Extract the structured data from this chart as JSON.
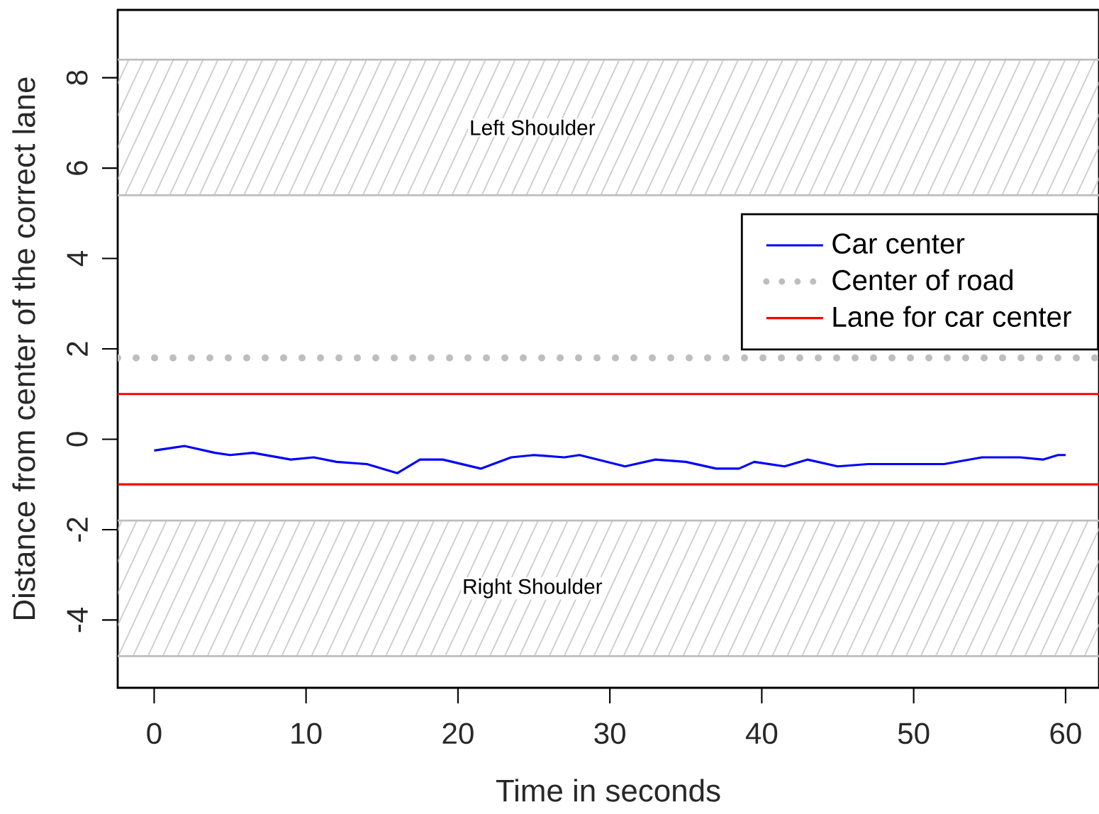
{
  "chart_data": {
    "type": "line",
    "xlabel": "Time in seconds",
    "ylabel": "Distance from center of the correct lane",
    "x": [
      0,
      2,
      4,
      5,
      6.5,
      9,
      10.5,
      12,
      14,
      16,
      17.5,
      19,
      21.5,
      23.5,
      25,
      27,
      28,
      31,
      33,
      35,
      37,
      38.5,
      39.5,
      41.5,
      43,
      45,
      47,
      52,
      54.5,
      57,
      58.5,
      59.5,
      60
    ],
    "series": [
      {
        "name": "Car center",
        "color": "#0000ff",
        "values": [
          -0.25,
          -0.15,
          -0.3,
          -0.35,
          -0.3,
          -0.45,
          -0.4,
          -0.5,
          -0.55,
          -0.75,
          -0.45,
          -0.45,
          -0.65,
          -0.4,
          -0.35,
          -0.4,
          -0.35,
          -0.6,
          -0.45,
          -0.5,
          -0.65,
          -0.65,
          -0.5,
          -0.6,
          -0.45,
          -0.6,
          -0.55,
          -0.55,
          -0.4,
          -0.4,
          -0.45,
          -0.35,
          -0.35
        ]
      }
    ],
    "xlim": [
      -2.4,
      62.2
    ],
    "ylim": [
      -5.5,
      9.5
    ],
    "xticks": [
      0,
      10,
      20,
      30,
      40,
      50,
      60
    ],
    "yticks": [
      -4,
      -2,
      0,
      2,
      4,
      6,
      8
    ],
    "ref_lines": [
      {
        "axis": "y",
        "value": 1.8,
        "label": "Center of road",
        "color": "#bebebe",
        "line_style": "dotted"
      },
      {
        "axis": "y",
        "value": 1,
        "label": "Lane for car center",
        "color": "#ff0000",
        "line_style": "solid"
      },
      {
        "axis": "y",
        "value": -1,
        "color": "#ff0000",
        "line_style": "solid"
      }
    ],
    "bands": [
      {
        "axis": "y",
        "from": 5.4,
        "to": 8.4,
        "label": "Left Shoulder",
        "color": "#bebebe"
      },
      {
        "axis": "y",
        "from": -4.8,
        "to": -1.8,
        "label": "Right Shoulder",
        "color": "#bebebe"
      }
    ],
    "legend": "top right"
  }
}
